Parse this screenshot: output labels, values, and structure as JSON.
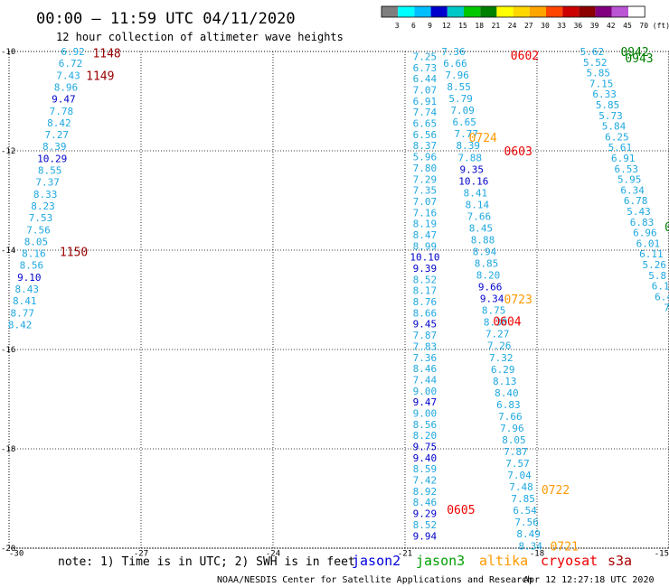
{
  "header": {
    "title": "00:00 – 11:59 UTC 04/11/2020",
    "subtitle": "12 hour collection of altimeter wave heights"
  },
  "colorbar": {
    "labels": [
      "3",
      "6",
      "9",
      "12",
      "15",
      "18",
      "21",
      "24",
      "27",
      "30",
      "33",
      "36",
      "39",
      "42",
      "45",
      "70",
      "(ft)"
    ],
    "colors": [
      "#7f7f7f",
      "#00ffff",
      "#00bfff",
      "#0000cd",
      "#00c8c8",
      "#00c800",
      "#008000",
      "#ffff00",
      "#ffd700",
      "#ffa500",
      "#ff4500",
      "#cc0000",
      "#8b0000",
      "#800080",
      "#ba55d3",
      "#ffffff"
    ]
  },
  "notes": {
    "note": "note:  1) Time is in UTC;  2) SWH is in feet",
    "missions": [
      {
        "name": "jason2",
        "color": "#0000dd"
      },
      {
        "name": "jason3",
        "color": "#00a000"
      },
      {
        "name": "altika",
        "color": "#ff9900"
      },
      {
        "name": "cryosat",
        "color": "#ee0000"
      },
      {
        "name": "s3a",
        "color": "#aa0000"
      }
    ],
    "credit": "NOAA/NESDIS Center for Satellite Applications and Research",
    "timestamp": "Apr 12 12:27:18 UTC 2020"
  },
  "chart_data": {
    "type": "scatter",
    "xlim": [
      -30,
      -15
    ],
    "ylim": [
      -20,
      -10
    ],
    "xticks": [
      -30,
      -27,
      -24,
      -21,
      -18,
      -15
    ],
    "yticks": [
      -10,
      -12,
      -14,
      -16,
      -18,
      -20
    ],
    "grid": true,
    "value_colors": [
      {
        "max": 9,
        "color": "#1ea8e0"
      },
      {
        "max": 12,
        "color": "#0000cc"
      }
    ],
    "tracks": [
      {
        "x0": -28.55,
        "x1": -29.75,
        "y0": -10.0,
        "y1": -15.5,
        "values": [
          "6.92",
          "6.72",
          "7.43",
          "8.96",
          "9.47",
          "7.78",
          "8.42",
          "7.27",
          "8.39",
          "10.29",
          "8.55",
          "7.37",
          "8.33",
          "8.23",
          "7.53",
          "7.56",
          "8.05",
          "8.16",
          "8.56",
          "9.10",
          "8.43",
          "8.41",
          "8.77",
          "8.42"
        ]
      },
      {
        "x0": -20.55,
        "x1": -20.55,
        "y0": -10.1,
        "y1": -19.75,
        "values": [
          "7.25",
          "6.73",
          "6.44",
          "7.07",
          "6.91",
          "7.74",
          "6.65",
          "6.56",
          "8.37",
          "5.96",
          "7.80",
          "7.29",
          "7.35",
          "7.07",
          "7.16",
          "8.19",
          "8.47",
          "8.99",
          "10.10",
          "9.39",
          "8.52",
          "8.17",
          "8.76",
          "8.66",
          "9.45",
          "7.87",
          "7.83",
          "7.36",
          "8.46",
          "7.44",
          "9.00",
          "9.47",
          "9.00",
          "8.56",
          "8.20",
          "9.75",
          "9.40",
          "8.59",
          "7.42",
          "8.92",
          "8.46",
          "9.29",
          "8.52",
          "9.94"
        ]
      },
      {
        "x0": -19.9,
        "x1": -18.15,
        "y0": -10.0,
        "y1": -19.95,
        "values": [
          "7.36",
          "6.66",
          "7.96",
          "8.55",
          "5.79",
          "7.09",
          "6.65",
          "7.77",
          "8.39",
          "7.88",
          "9.35",
          "10.16",
          "8.41",
          "8.14",
          "7.66",
          "8.45",
          "8.88",
          "8.94",
          "8.85",
          "8.20",
          "9.66",
          "9.34",
          "8.75",
          "8.30",
          "7.27",
          "7.26",
          "7.32",
          "6.29",
          "8.13",
          "8.40",
          "6.83",
          "7.66",
          "7.96",
          "8.05",
          "7.87",
          "7.57",
          "7.04",
          "7.48",
          "7.85",
          "6.54",
          "7.56",
          "8.49",
          "8.34"
        ]
      },
      {
        "x0": -16.75,
        "x1": -15.05,
        "y0": -10.0,
        "y1": -15.15,
        "values": [
          "5.62",
          "5.52",
          "5.85",
          "7.15",
          "6.33",
          "5.85",
          "5.73",
          "5.84",
          "6.25",
          "5.61",
          "6.91",
          "6.53",
          "5.95",
          "6.34",
          "6.78",
          "5.43",
          "6.83",
          "6.96",
          "6.01",
          "6.11",
          "5.26",
          "5.8",
          "6.1",
          "6.4",
          "7"
        ]
      }
    ],
    "time_labels": [
      {
        "text": "1148",
        "x": -28.1,
        "y": -10.03,
        "color": "#990000"
      },
      {
        "text": "1149",
        "x": -28.25,
        "y": -10.48,
        "color": "#990000"
      },
      {
        "text": "1150",
        "x": -28.85,
        "y": -14.03,
        "color": "#990000"
      },
      {
        "text": "0602",
        "x": -18.6,
        "y": -10.07,
        "color": "#ee0000"
      },
      {
        "text": "0603",
        "x": -18.75,
        "y": -12.0,
        "color": "#ee0000"
      },
      {
        "text": "0604",
        "x": -19.0,
        "y": -15.43,
        "color": "#ee0000"
      },
      {
        "text": "0605",
        "x": -20.05,
        "y": -19.22,
        "color": "#ee0000"
      },
      {
        "text": "0724",
        "x": -19.55,
        "y": -11.73,
        "color": "#ff9900"
      },
      {
        "text": "0723",
        "x": -18.75,
        "y": -14.98,
        "color": "#ff9900"
      },
      {
        "text": "0722",
        "x": -17.9,
        "y": -18.82,
        "color": "#ff9900"
      },
      {
        "text": "0721",
        "x": -17.7,
        "y": -19.95,
        "color": "#ff9900"
      },
      {
        "text": "0942",
        "x": -16.1,
        "y": -10.0,
        "color": "#008000"
      },
      {
        "text": "0943",
        "x": -16.0,
        "y": -10.13,
        "color": "#008000"
      },
      {
        "text": "0",
        "x": -15.1,
        "y": -13.53,
        "color": "#008000"
      }
    ]
  }
}
